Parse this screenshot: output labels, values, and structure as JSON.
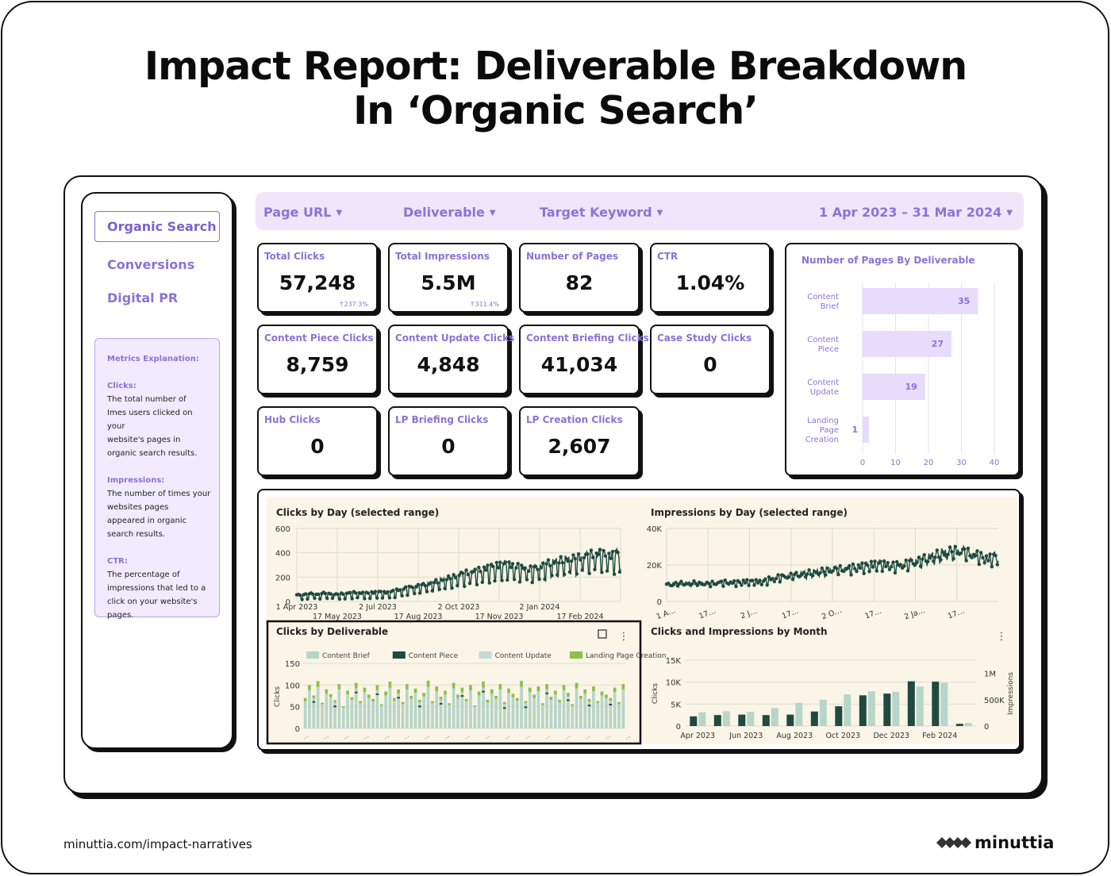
{
  "title_line1": "Impact Report: Deliverable Breakdown",
  "title_line2": "In ‘Organic Search’",
  "sidebar": {
    "active": "Organic Search",
    "items": [
      "Conversions",
      "Digital PR"
    ],
    "explain": {
      "heading": "Metrics Explanation:",
      "clicks_h": "Clicks:",
      "clicks_1": "The total number of",
      "clicks_2": "Imes users clicked on your",
      "clicks_3": "website's pages in",
      "clicks_4": "organic search results.",
      "impr_h": "Impressions:",
      "impr_1": "The number of times your",
      "impr_2": "websites pages",
      "impr_3": "appeared in organic",
      "impr_4": "search results.",
      "ctr_h": "CTR:",
      "ctr_1": "The percentage of",
      "ctr_2": "impressions that led to a",
      "ctr_3": "click on your website's",
      "ctr_4": "pages."
    }
  },
  "filters": {
    "page_url": "Page URL",
    "deliverable": "Deliverable",
    "target_keyword": "Target Keyword",
    "date_range": "1 Apr 2023 – 31 Mar 2024"
  },
  "cards": {
    "total_clicks": {
      "label": "Total Clicks",
      "value": "57,248",
      "delta": "↑237.3%"
    },
    "total_impressions": {
      "label": "Total Impressions",
      "value": "5.5M",
      "delta": "↑311.4%"
    },
    "pages": {
      "label": "Number of Pages",
      "value": "82"
    },
    "ctr": {
      "label": "CTR",
      "value": "1.04%"
    },
    "piece": {
      "label": "Content Piece Clicks",
      "value": "8,759"
    },
    "update": {
      "label": "Content Update Clicks",
      "value": "4,848"
    },
    "briefing": {
      "label": "Content Briefing Clicks",
      "value": "41,034"
    },
    "case": {
      "label": "Case Study Clicks",
      "value": "0"
    },
    "hub": {
      "label": "Hub Clicks",
      "value": "0"
    },
    "lp_brief": {
      "label": "LP Briefing Clicks",
      "value": "0"
    },
    "lp_create": {
      "label": "LP Creation Clicks",
      "value": "2,607"
    }
  },
  "colors": {
    "accent": "#8a73d6",
    "bar_fill": "#e7dcfb",
    "dark_green": "#1f4a40",
    "light_green": "#b8d5c9",
    "lime": "#8dbf4a",
    "beige": "#faf5e6"
  },
  "icons": {
    "caret": "▼",
    "kebab": "⋮"
  },
  "footer": {
    "url": "minuttia.com/impact-narratives",
    "brand": "minuttia"
  },
  "chart_data": [
    {
      "type": "bar",
      "title": "Number of Pages By Deliverable",
      "orientation": "horizontal",
      "categories": [
        "Content Brief",
        "Content Piece",
        "Content Update",
        "Landing Page Creation"
      ],
      "category_lines": [
        [
          "Content",
          "Brief"
        ],
        [
          "Content",
          "Piece"
        ],
        [
          "Content",
          "Update"
        ],
        [
          "Landing",
          "Page",
          "Creation"
        ]
      ],
      "values": [
        35,
        27,
        19,
        1
      ],
      "xlim": [
        0,
        40
      ],
      "xticks": [
        "0",
        "10",
        "20",
        "30",
        "40"
      ]
    },
    {
      "type": "line",
      "title": "Clicks by Day (selected range)",
      "x_start": "2023-04-01",
      "x_end": "2024-03-31",
      "ylim": [
        0,
        600
      ],
      "yticks": [
        "0",
        "200",
        "400",
        "600"
      ],
      "xticks_top": [
        "1 Apr 2023",
        "2 Jul 2023",
        "2 Oct 2023",
        "2 Jan 2024"
      ],
      "xticks_bottom": [
        "17 May 2023",
        "17 Aug 2023",
        "17 Nov 2023",
        "17 Feb 2024"
      ],
      "weekly_base": [
        55,
        60,
        65,
        60,
        70,
        65,
        60,
        65,
        70,
        75,
        70,
        70,
        75,
        80,
        75,
        85,
        95,
        110,
        120,
        130,
        140,
        150,
        165,
        180,
        195,
        210,
        230,
        240,
        250,
        260,
        275,
        290,
        300,
        310,
        300,
        290,
        280,
        270,
        280,
        300,
        320,
        330,
        340,
        350,
        360,
        370,
        380,
        390,
        400,
        390,
        380,
        400
      ],
      "weekly_low": [
        15,
        20,
        25,
        20,
        25,
        25,
        20,
        20,
        25,
        30,
        25,
        25,
        30,
        30,
        30,
        35,
        45,
        55,
        60,
        70,
        75,
        85,
        95,
        100,
        110,
        120,
        130,
        140,
        150,
        155,
        165,
        175,
        180,
        190,
        180,
        175,
        170,
        165,
        170,
        185,
        200,
        210,
        215,
        225,
        230,
        240,
        245,
        250,
        260,
        250,
        240,
        255
      ]
    },
    {
      "type": "line",
      "title": "Impressions by Day (selected range)",
      "ylim": [
        0,
        40000
      ],
      "yticks": [
        "0",
        "20K",
        "40K"
      ],
      "xticks": [
        "1 A…",
        "17…",
        "2 J…",
        "17…",
        "2 O…",
        "17…",
        "2 Ja…",
        "17…"
      ],
      "weekly_base": [
        9500,
        10000,
        10200,
        10000,
        10400,
        10200,
        10000,
        10300,
        10600,
        10800,
        10500,
        10700,
        11000,
        11200,
        11000,
        11500,
        12500,
        13500,
        14000,
        14500,
        15000,
        15500,
        16000,
        16500,
        17000,
        17500,
        18000,
        18200,
        18500,
        19000,
        19500,
        20000,
        20500,
        21000,
        20500,
        20000,
        20500,
        21000,
        22000,
        23000,
        24000,
        25000,
        26000,
        27000,
        28000,
        28500,
        28000,
        27000,
        26000,
        25000,
        24000,
        25000
      ],
      "weekly_low": [
        8000,
        8500,
        8700,
        8500,
        8800,
        8600,
        8400,
        8700,
        9000,
        9200,
        8900,
        9100,
        9300,
        9500,
        9300,
        9800,
        10500,
        11500,
        12000,
        12500,
        12800,
        13200,
        13600,
        14000,
        14500,
        15000,
        15500,
        15600,
        15800,
        16200,
        16600,
        17000,
        17400,
        17800,
        17400,
        17000,
        17400,
        17800,
        18600,
        19500,
        20400,
        21200,
        22100,
        23000,
        23800,
        24200,
        23800,
        22900,
        22100,
        21200,
        20400,
        21200
      ]
    },
    {
      "type": "bar",
      "title": "Clicks by Deliverable",
      "stacked": true,
      "series": [
        {
          "name": "Content Brief",
          "color": "#b8d5c9"
        },
        {
          "name": "Content Piece",
          "color": "#1f4a40"
        },
        {
          "name": "Content Update",
          "color": "#c7d9d4"
        },
        {
          "name": "Landing Page Creation",
          "color": "#8dbf4a"
        }
      ],
      "ylabel": "Clicks",
      "ylim": [
        0,
        150
      ],
      "yticks": [
        "0",
        "50",
        "100",
        "150"
      ],
      "brief_values": [
        62,
        88,
        70,
        95,
        55,
        80,
        72,
        60,
        90,
        48,
        78,
        66,
        92,
        58,
        84,
        70,
        62,
        88,
        52,
        76,
        94,
        64,
        80,
        56,
        90,
        68,
        82,
        60,
        74,
        96,
        58,
        86,
        66,
        78,
        54,
        92,
        70,
        84,
        62,
        88,
        50,
        76,
        94,
        60,
        80,
        68,
        90,
        56,
        82,
        72,
        64,
        96,
        58,
        84,
        70,
        86,
        54,
        90,
        66,
        78,
        60,
        88,
        74,
        52,
        92,
        68,
        80,
        62,
        86,
        58,
        76,
        70,
        64,
        84,
        56,
        90
      ],
      "lp_values": [
        8,
        12,
        6,
        14,
        4,
        10,
        7,
        5,
        12,
        3,
        9,
        6,
        13,
        5,
        10,
        8,
        6,
        12,
        4,
        9,
        14,
        6,
        10,
        5,
        12,
        7,
        10,
        6,
        8,
        14,
        5,
        11,
        7,
        9,
        4,
        13,
        8,
        10,
        6,
        12,
        3,
        9,
        14,
        6,
        10,
        7,
        12,
        5,
        10,
        8,
        6,
        14,
        5,
        10,
        8,
        11,
        4,
        12,
        7,
        9,
        6,
        12,
        8,
        4,
        13,
        7,
        10,
        6,
        11,
        5,
        9,
        8,
        6,
        10,
        5,
        12
      ]
    },
    {
      "type": "bar",
      "title": "Clicks and  Impressions by Month",
      "series": [
        {
          "name": "Clicks",
          "color": "#1f4a40",
          "values": [
            2200,
            2500,
            2600,
            2500,
            2600,
            3300,
            4500,
            7000,
            7400,
            10200,
            10100,
            500
          ]
        },
        {
          "name": "Impressions",
          "color": "#b8d5c9",
          "values": [
            260000,
            280000,
            270000,
            340000,
            440000,
            500000,
            600000,
            660000,
            650000,
            750000,
            820000,
            60000
          ]
        }
      ],
      "ylabel": "Clicks",
      "y2label": "Impressions",
      "ylim": [
        0,
        15000
      ],
      "y2lim": [
        0,
        1250000
      ],
      "yticks": [
        "0",
        "5K",
        "10K",
        "15K"
      ],
      "y2ticks": [
        "0",
        "500K",
        "1M"
      ],
      "xticks": [
        "Apr 2023",
        "Jun 2023",
        "Aug 2023",
        "Oct 2023",
        "Dec 2023",
        "Feb 2024"
      ]
    }
  ]
}
